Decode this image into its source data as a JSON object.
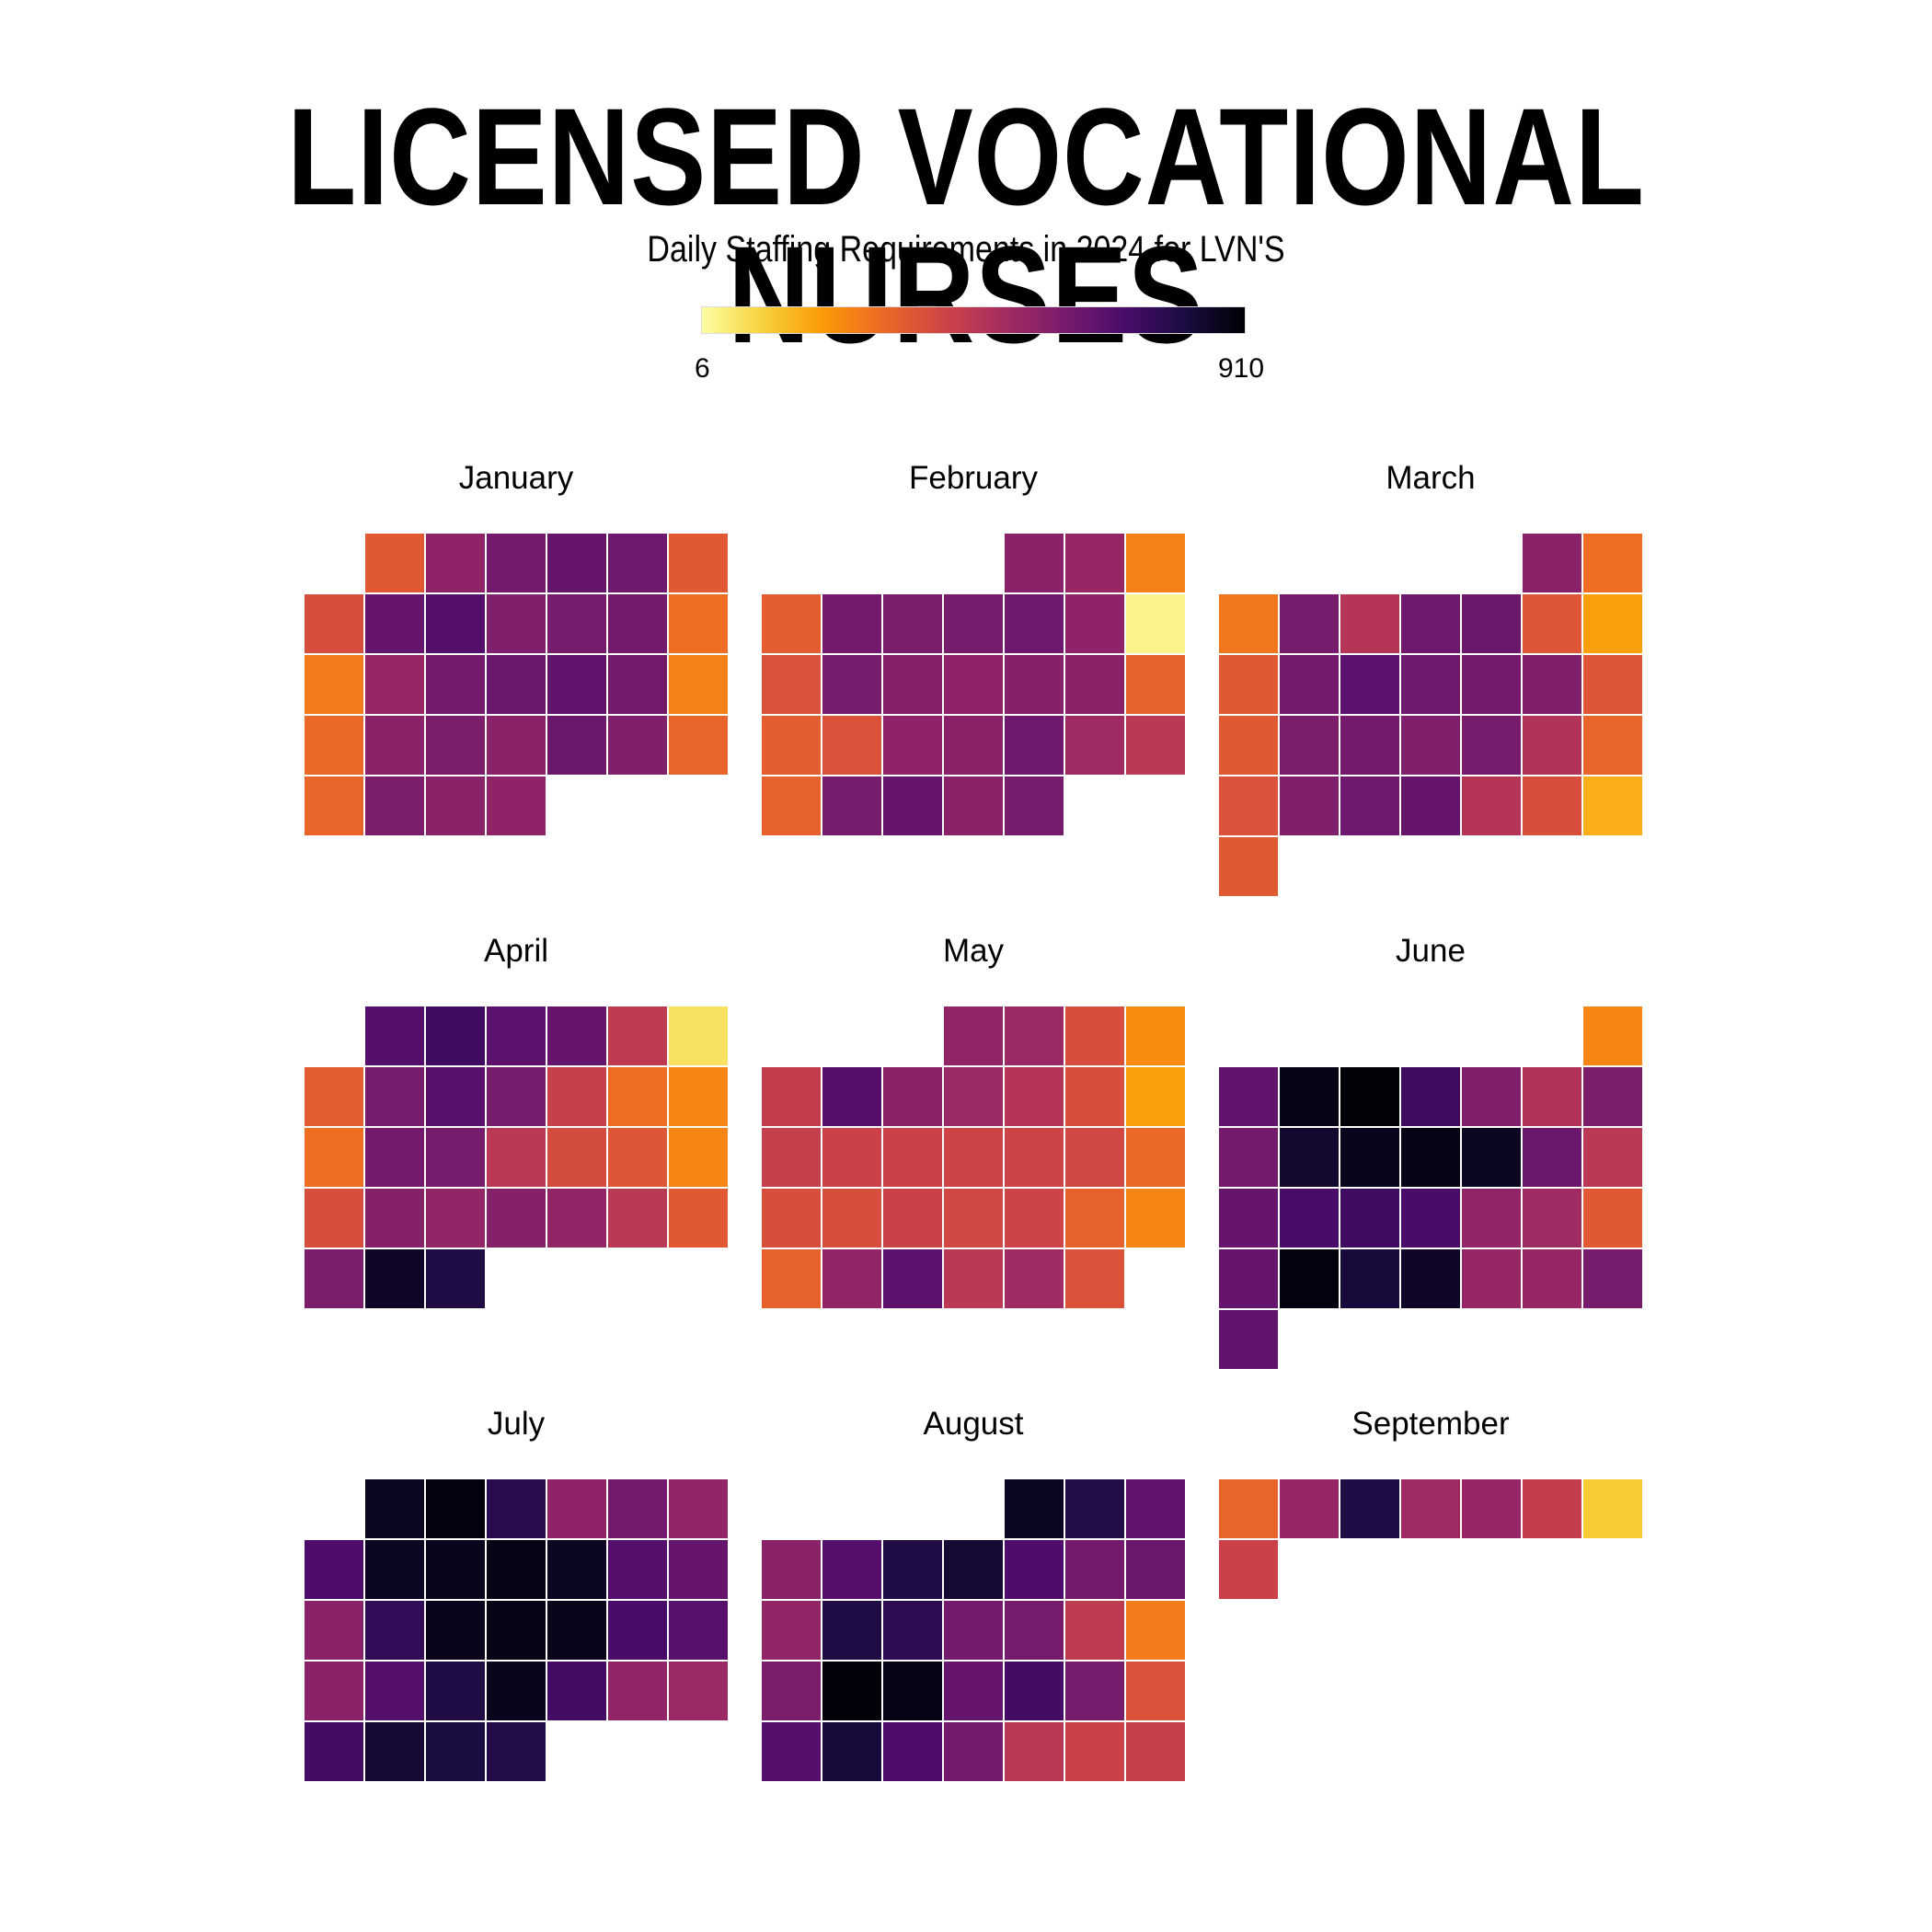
{
  "title": "LICENSED VOCATIONAL NURSES",
  "subtitle": "Daily Staffing Requirements in 2024 for LVN'S",
  "colorbar": {
    "min_label": "6",
    "max_label": "910",
    "colors": [
      "#fcffa4",
      "#f7d13d",
      "#fb9b06",
      "#ed6925",
      "#cf4446",
      "#a52c60",
      "#781c6d",
      "#4a0c6b",
      "#1b0c41",
      "#000004"
    ]
  },
  "chart_data": {
    "type": "heatmap",
    "title": "LICENSED VOCATIONAL NURSES",
    "subtitle": "Daily Staffing Requirements in 2024 for LVN'S",
    "range": [
      6,
      910
    ],
    "colormap": "inferno",
    "months": [
      {
        "name": "January",
        "first_weekday": 1,
        "values": [
          350,
          560,
          620,
          650,
          630,
          350,
          380,
          650,
          690,
          590,
          610,
          620,
          300,
          270,
          540,
          620,
          640,
          660,
          620,
          260,
          310,
          570,
          600,
          570,
          640,
          590,
          320,
          320,
          600,
          570,
          560
        ]
      },
      {
        "name": "February",
        "first_weekday": 4,
        "values": [
          570,
          540,
          260,
          340,
          620,
          600,
          610,
          630,
          560,
          30,
          370,
          610,
          580,
          560,
          580,
          570,
          330,
          340,
          370,
          560,
          570,
          630,
          520,
          460,
          330,
          610,
          650,
          570,
          610
        ]
      },
      {
        "name": "March",
        "first_weekday": 5,
        "values": [
          570,
          300,
          280,
          610,
          470,
          630,
          640,
          360,
          200,
          350,
          620,
          670,
          630,
          620,
          590,
          360,
          350,
          600,
          620,
          590,
          610,
          480,
          320,
          370,
          590,
          630,
          650,
          470,
          380,
          170,
          350
        ]
      },
      {
        "name": "April",
        "first_weekday": 1,
        "values": [
          690,
          730,
          670,
          650,
          450,
          70,
          340,
          610,
          680,
          610,
          430,
          300,
          250,
          300,
          620,
          610,
          460,
          390,
          360,
          250,
          380,
          580,
          550,
          580,
          550,
          460,
          350,
          600,
          850,
          800
        ]
      },
      {
        "name": "May",
        "first_weekday": 3,
        "values": [
          550,
          530,
          380,
          240,
          440,
          690,
          570,
          530,
          470,
          380,
          200,
          430,
          420,
          420,
          410,
          410,
          400,
          310,
          380,
          380,
          420,
          400,
          410,
          330,
          250,
          330,
          550,
          670,
          460,
          520,
          370
        ]
      },
      {
        "name": "June",
        "first_weekday": 6,
        "values": [
          250,
          660,
          880,
          905,
          730,
          590,
          480,
          600,
          620,
          840,
          870,
          880,
          860,
          640,
          460,
          650,
          710,
          730,
          710,
          550,
          520,
          350,
          650,
          890,
          820,
          850,
          540,
          540,
          610,
          660
        ]
      },
      {
        "name": "July",
        "first_weekday": 1,
        "values": [
          860,
          890,
          780,
          560,
          620,
          550,
          700,
          860,
          870,
          880,
          860,
          690,
          650,
          570,
          760,
          870,
          880,
          870,
          710,
          680,
          570,
          690,
          800,
          870,
          720,
          550,
          530,
          720,
          830,
          810,
          790
        ]
      },
      {
        "name": "August",
        "first_weekday": 4,
        "values": [
          860,
          790,
          660,
          570,
          690,
          800,
          830,
          700,
          620,
          640,
          550,
          800,
          770,
          620,
          610,
          450,
          270,
          600,
          900,
          880,
          650,
          720,
          610,
          370,
          690,
          820,
          700,
          620,
          460,
          420,
          430
        ]
      },
      {
        "name": "September",
        "first_weekday": 0,
        "values": [
          320,
          540,
          800,
          520,
          540,
          440,
          120,
          420
        ]
      }
    ]
  }
}
